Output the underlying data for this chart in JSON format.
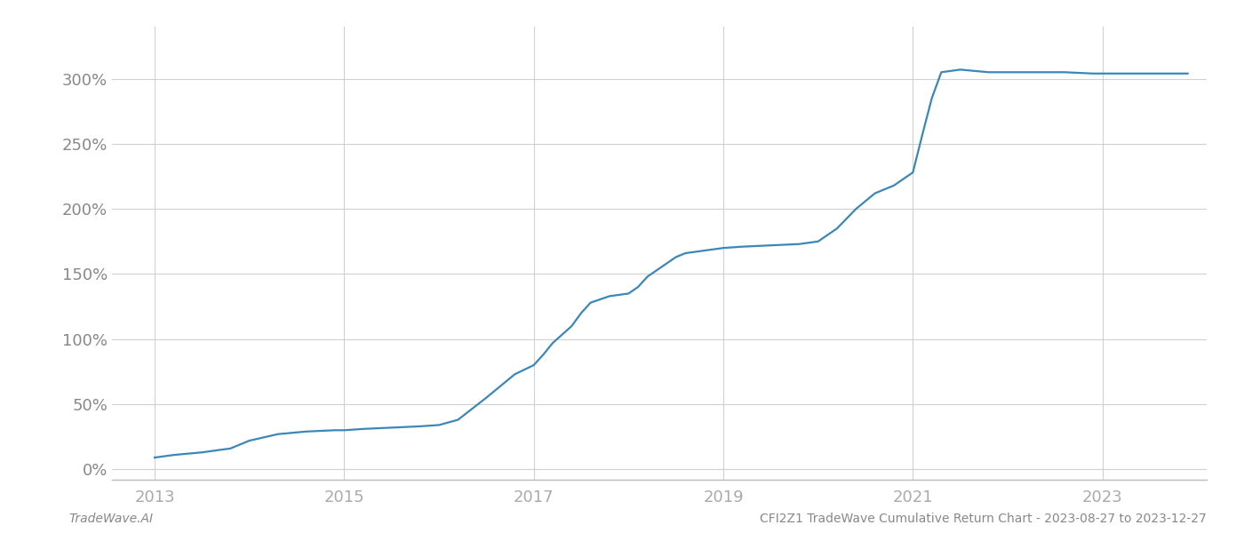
{
  "title": "",
  "footer_left": "TradeWave.AI",
  "footer_right": "CFI2Z1 TradeWave Cumulative Return Chart - 2023-08-27 to 2023-12-27",
  "line_color": "#3a87b8",
  "background_color": "#ffffff",
  "grid_color": "#d0d0d0",
  "x_years": [
    2013.0,
    2013.2,
    2013.5,
    2013.8,
    2014.0,
    2014.3,
    2014.6,
    2014.9,
    2015.0,
    2015.2,
    2015.5,
    2015.8,
    2016.0,
    2016.2,
    2016.5,
    2016.8,
    2017.0,
    2017.1,
    2017.2,
    2017.4,
    2017.5,
    2017.6,
    2017.8,
    2018.0,
    2018.1,
    2018.2,
    2018.4,
    2018.5,
    2018.6,
    2018.8,
    2019.0,
    2019.2,
    2019.5,
    2019.8,
    2020.0,
    2020.2,
    2020.4,
    2020.6,
    2020.8,
    2021.0,
    2021.1,
    2021.2,
    2021.3,
    2021.5,
    2021.8,
    2022.0,
    2022.3,
    2022.6,
    2022.9,
    2023.0,
    2023.3,
    2023.6,
    2023.9
  ],
  "y_values": [
    9,
    11,
    13,
    16,
    22,
    27,
    29,
    30,
    30,
    31,
    32,
    33,
    34,
    38,
    55,
    73,
    80,
    88,
    97,
    110,
    120,
    128,
    133,
    135,
    140,
    148,
    158,
    163,
    166,
    168,
    170,
    171,
    172,
    173,
    175,
    185,
    200,
    212,
    218,
    228,
    257,
    285,
    305,
    307,
    305,
    305,
    305,
    305,
    304,
    304,
    304,
    304,
    304
  ],
  "yticks": [
    0,
    50,
    100,
    150,
    200,
    250,
    300
  ],
  "xticks": [
    2013,
    2015,
    2017,
    2019,
    2021,
    2023
  ],
  "xlim": [
    2012.55,
    2024.1
  ],
  "ylim": [
    -8,
    340
  ]
}
